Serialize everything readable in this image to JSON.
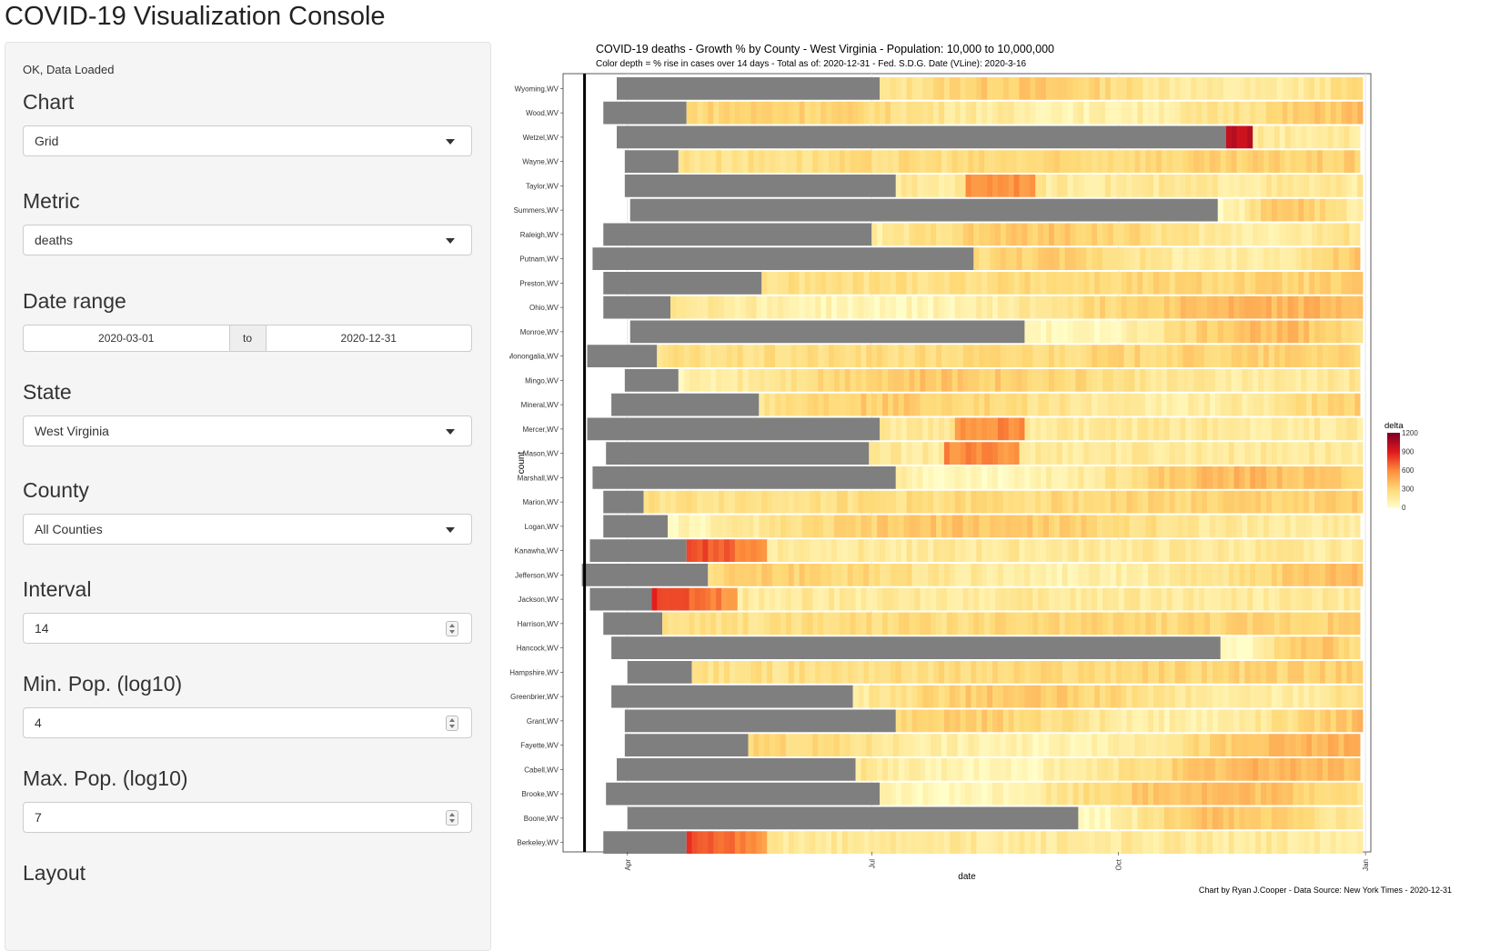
{
  "app": {
    "title": "COVID-19 Visualization Console"
  },
  "sidebar": {
    "status": "OK, Data Loaded",
    "chart": {
      "label": "Chart",
      "value": "Grid"
    },
    "metric": {
      "label": "Metric",
      "value": "deaths"
    },
    "date_range": {
      "label": "Date range",
      "start": "2020-03-01",
      "separator": "to",
      "end": "2020-12-31"
    },
    "state": {
      "label": "State",
      "value": "West Virginia"
    },
    "county": {
      "label": "County",
      "value": "All Counties"
    },
    "interval": {
      "label": "Interval",
      "value": "14"
    },
    "min_pop": {
      "label": "Min. Pop. (log10)",
      "value": "4"
    },
    "max_pop": {
      "label": "Max. Pop. (log10)",
      "value": "7"
    },
    "layout": {
      "label": "Layout"
    }
  },
  "chart_data": {
    "type": "heatmap",
    "title": "COVID-19 deaths - Growth % by County - West Virginia - Population: 10,000 to 10,000,000",
    "subtitle": "Color depth = % rise in cases over 14 days - Total as of: 2020-12-31 - Fed. S.D.G. Date (VLine): 2020-3-16",
    "caption": "Chart by Ryan J.Cooper - Data Source: New York Times - 2020-12-31",
    "xlabel": "date",
    "ylabel": "count",
    "x_ticks": [
      "Apr",
      "Jul",
      "Oct",
      "Jan"
    ],
    "x_range": [
      "2020-03-08",
      "2021-01-03"
    ],
    "vline": "2020-03-16",
    "legend": {
      "title": "delta",
      "position": "right",
      "ticks": [
        "1200",
        "900",
        "600",
        "300",
        "0"
      ],
      "colors": [
        "#ffffcc",
        "#fed976",
        "#fd8d3c",
        "#e31a1c",
        "#800026"
      ],
      "max": 1200
    },
    "no_data_color": "#7f7f7f",
    "counties": [
      {
        "name": "Wyoming,WV",
        "first": "2020-03-28",
        "data_start": "2020-07-04",
        "color_profile": "moderate"
      },
      {
        "name": "Wood,WV",
        "first": "2020-03-23",
        "data_start": "2020-04-23",
        "color_profile": "moderate"
      },
      {
        "name": "Wetzel,WV",
        "first": "2020-03-28",
        "data_start": "2020-11-10",
        "color_profile": "spike-late"
      },
      {
        "name": "Wayne,WV",
        "first": "2020-03-31",
        "data_start": "2020-04-20",
        "color_profile": "light"
      },
      {
        "name": "Taylor,WV",
        "first": "2020-03-31",
        "data_start": "2020-07-10",
        "color_profile": "spike-mid"
      },
      {
        "name": "Summers,WV",
        "first": "2020-04-02",
        "data_start": "2020-11-07",
        "color_profile": "moderate"
      },
      {
        "name": "Raleigh,WV",
        "first": "2020-03-23",
        "data_start": "2020-07-01",
        "color_profile": "moderate"
      },
      {
        "name": "Putnam,WV",
        "first": "2020-03-19",
        "data_start": "2020-08-08",
        "color_profile": "moderate"
      },
      {
        "name": "Preston,WV",
        "first": "2020-03-23",
        "data_start": "2020-05-21",
        "color_profile": "light"
      },
      {
        "name": "Ohio,WV",
        "first": "2020-03-23",
        "data_start": "2020-04-17",
        "color_profile": "moderate"
      },
      {
        "name": "Monroe,WV",
        "first": "2020-04-02",
        "data_start": "2020-08-27",
        "color_profile": "moderate"
      },
      {
        "name": "Monongalia,WV",
        "first": "2020-03-17",
        "data_start": "2020-04-12",
        "color_profile": "light"
      },
      {
        "name": "Mingo,WV",
        "first": "2020-03-31",
        "data_start": "2020-04-20",
        "color_profile": "moderate"
      },
      {
        "name": "Mineral,WV",
        "first": "2020-03-26",
        "data_start": "2020-05-20",
        "color_profile": "moderate"
      },
      {
        "name": "Mercer,WV",
        "first": "2020-03-17",
        "data_start": "2020-07-04",
        "color_profile": "spike-mid"
      },
      {
        "name": "Mason,WV",
        "first": "2020-03-24",
        "data_start": "2020-06-30",
        "color_profile": "spike-mid"
      },
      {
        "name": "Marshall,WV",
        "first": "2020-03-19",
        "data_start": "2020-07-10",
        "color_profile": "moderate"
      },
      {
        "name": "Marion,WV",
        "first": "2020-03-23",
        "data_start": "2020-04-07",
        "color_profile": "light"
      },
      {
        "name": "Logan,WV",
        "first": "2020-03-23",
        "data_start": "2020-04-16",
        "color_profile": "moderate"
      },
      {
        "name": "Kanawha,WV",
        "first": "2020-03-18",
        "data_start": "2020-04-23",
        "color_profile": "spike-early"
      },
      {
        "name": "Jefferson,WV",
        "first": "2020-03-15",
        "data_start": "2020-05-01",
        "color_profile": "moderate"
      },
      {
        "name": "Jackson,WV",
        "first": "2020-03-18",
        "data_start": "2020-04-10",
        "color_profile": "spike-early"
      },
      {
        "name": "Harrison,WV",
        "first": "2020-03-23",
        "data_start": "2020-04-14",
        "color_profile": "light"
      },
      {
        "name": "Hancock,WV",
        "first": "2020-03-26",
        "data_start": "2020-11-08",
        "color_profile": "moderate"
      },
      {
        "name": "Hampshire,WV",
        "first": "2020-04-01",
        "data_start": "2020-04-25",
        "color_profile": "light"
      },
      {
        "name": "Greenbrier,WV",
        "first": "2020-03-26",
        "data_start": "2020-06-24",
        "color_profile": "moderate"
      },
      {
        "name": "Grant,WV",
        "first": "2020-03-31",
        "data_start": "2020-07-10",
        "color_profile": "moderate"
      },
      {
        "name": "Fayette,WV",
        "first": "2020-03-31",
        "data_start": "2020-05-16",
        "color_profile": "moderate"
      },
      {
        "name": "Cabell,WV",
        "first": "2020-03-28",
        "data_start": "2020-06-25",
        "color_profile": "moderate"
      },
      {
        "name": "Brooke,WV",
        "first": "2020-03-24",
        "data_start": "2020-07-04",
        "color_profile": "moderate"
      },
      {
        "name": "Boone,WV",
        "first": "2020-04-01",
        "data_start": "2020-09-16",
        "color_profile": "moderate"
      },
      {
        "name": "Berkeley,WV",
        "first": "2020-03-23",
        "data_start": "2020-04-23",
        "color_profile": "spike-early"
      }
    ]
  }
}
